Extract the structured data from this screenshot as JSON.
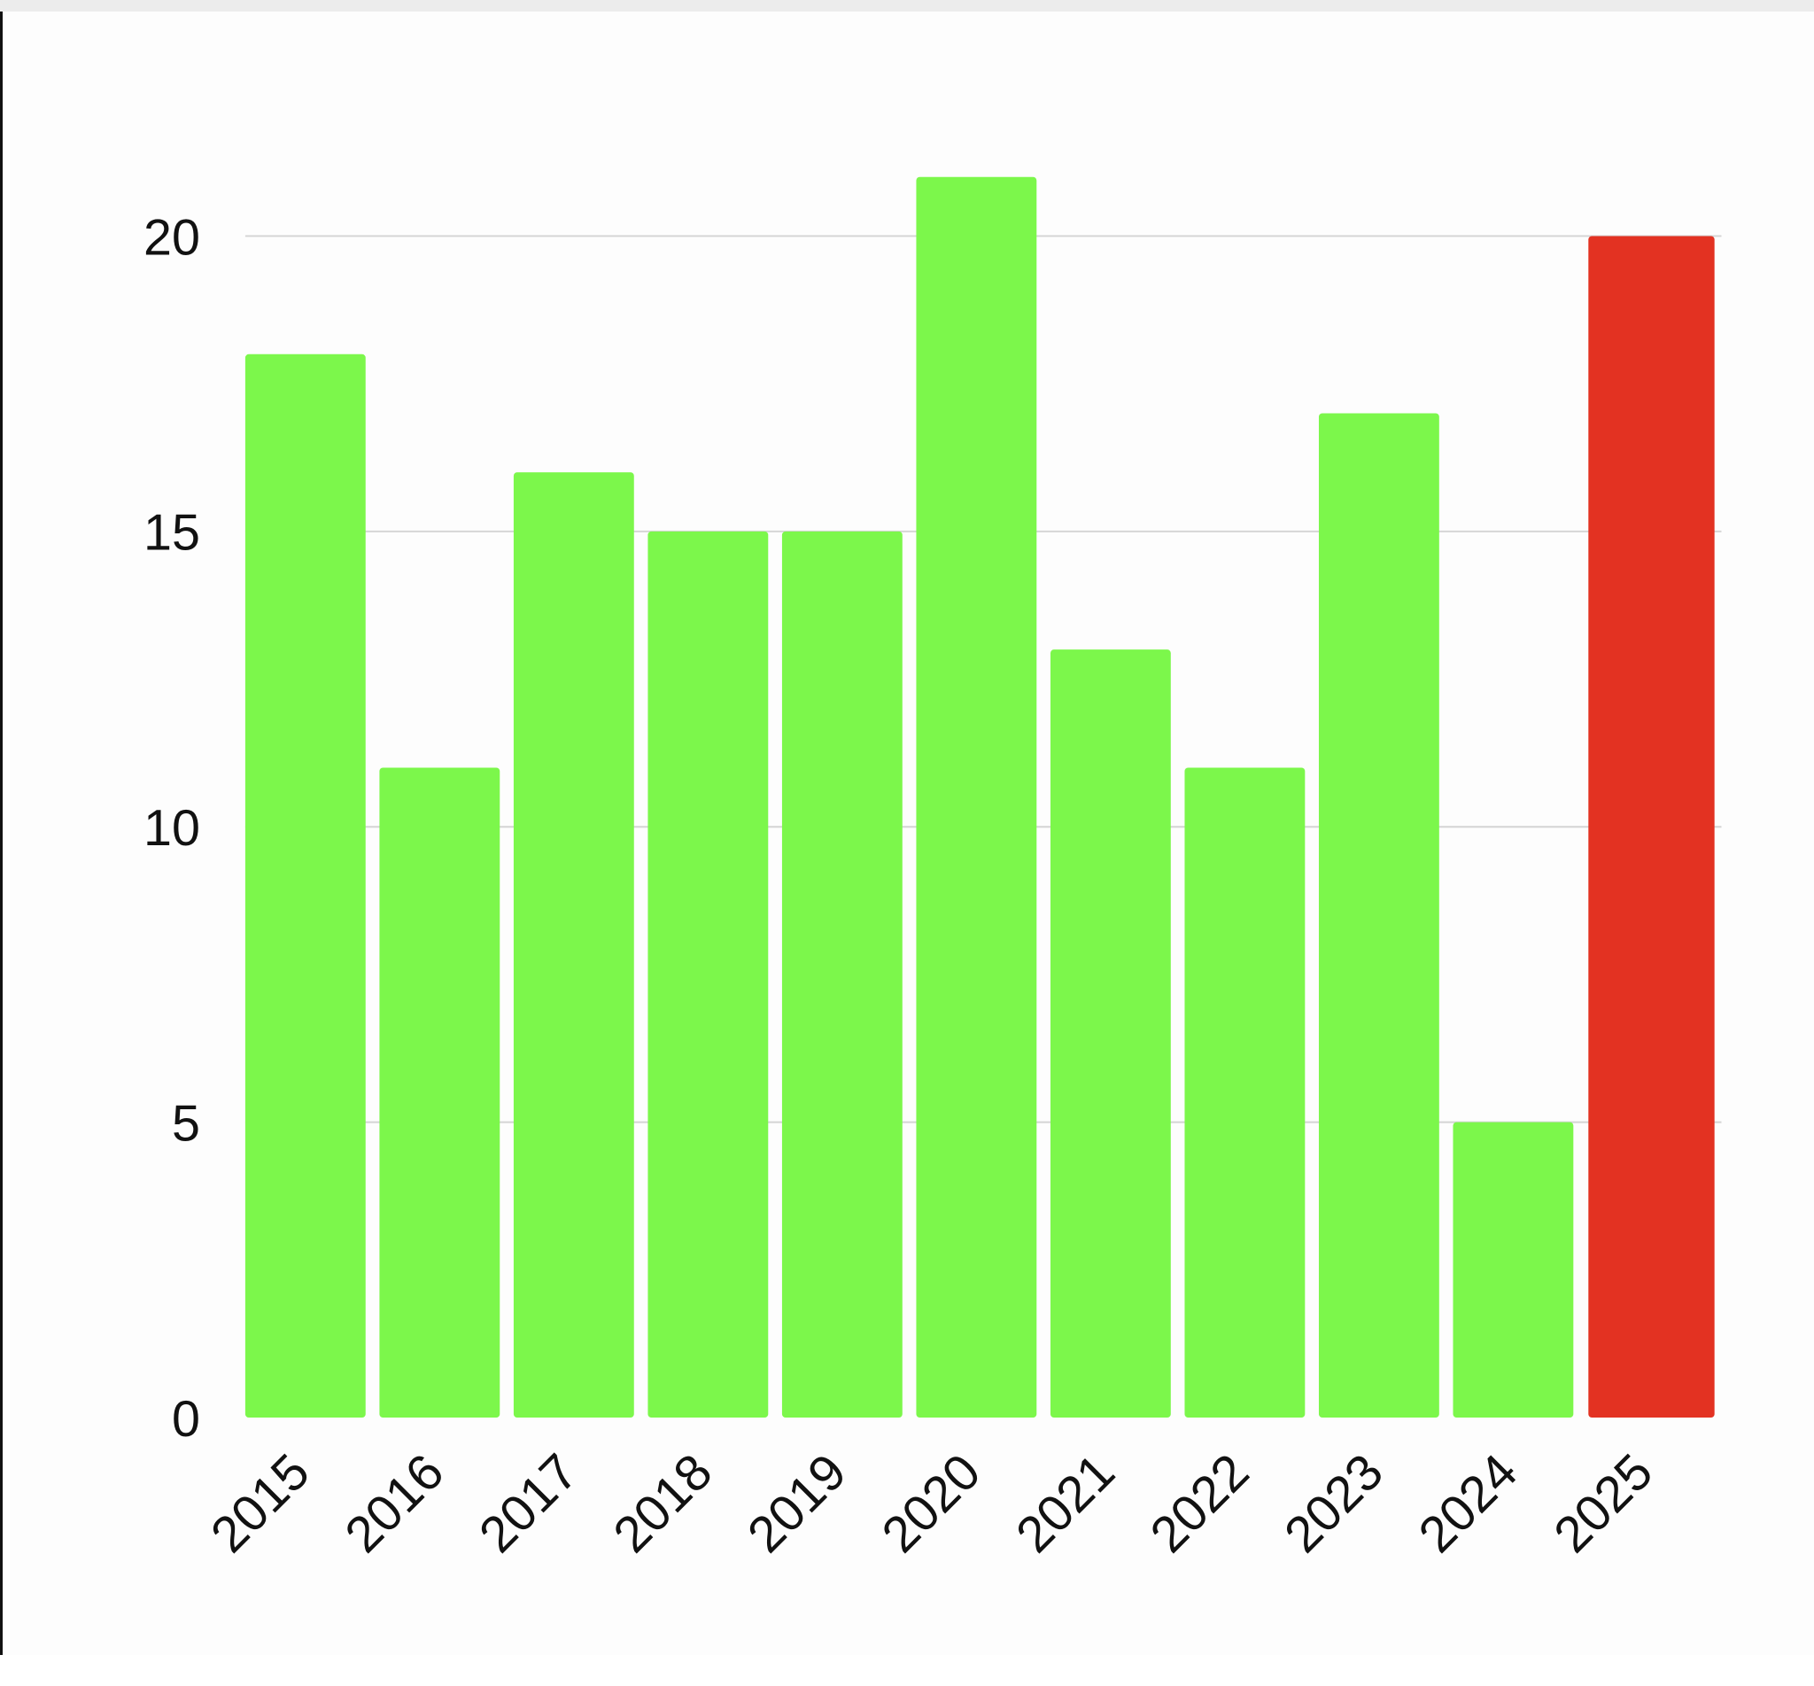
{
  "chart_data": {
    "type": "bar",
    "categories": [
      "2015",
      "2016",
      "2017",
      "2018",
      "2019",
      "2020",
      "2021",
      "2022",
      "2023",
      "2024",
      "2025"
    ],
    "values": [
      18,
      11,
      16,
      15,
      15,
      21,
      13,
      11,
      17,
      5,
      20
    ],
    "colors": [
      "#7cf74b",
      "#7cf74b",
      "#7cf74b",
      "#7cf74b",
      "#7cf74b",
      "#7cf74b",
      "#7cf74b",
      "#7cf74b",
      "#7cf74b",
      "#7cf74b",
      "#e33222"
    ],
    "title": "",
    "xlabel": "",
    "ylabel": "",
    "ylim": [
      0,
      20
    ],
    "yticks": [
      "0",
      "5",
      "10",
      "15",
      "20"
    ],
    "grid": true,
    "legend": "none"
  }
}
